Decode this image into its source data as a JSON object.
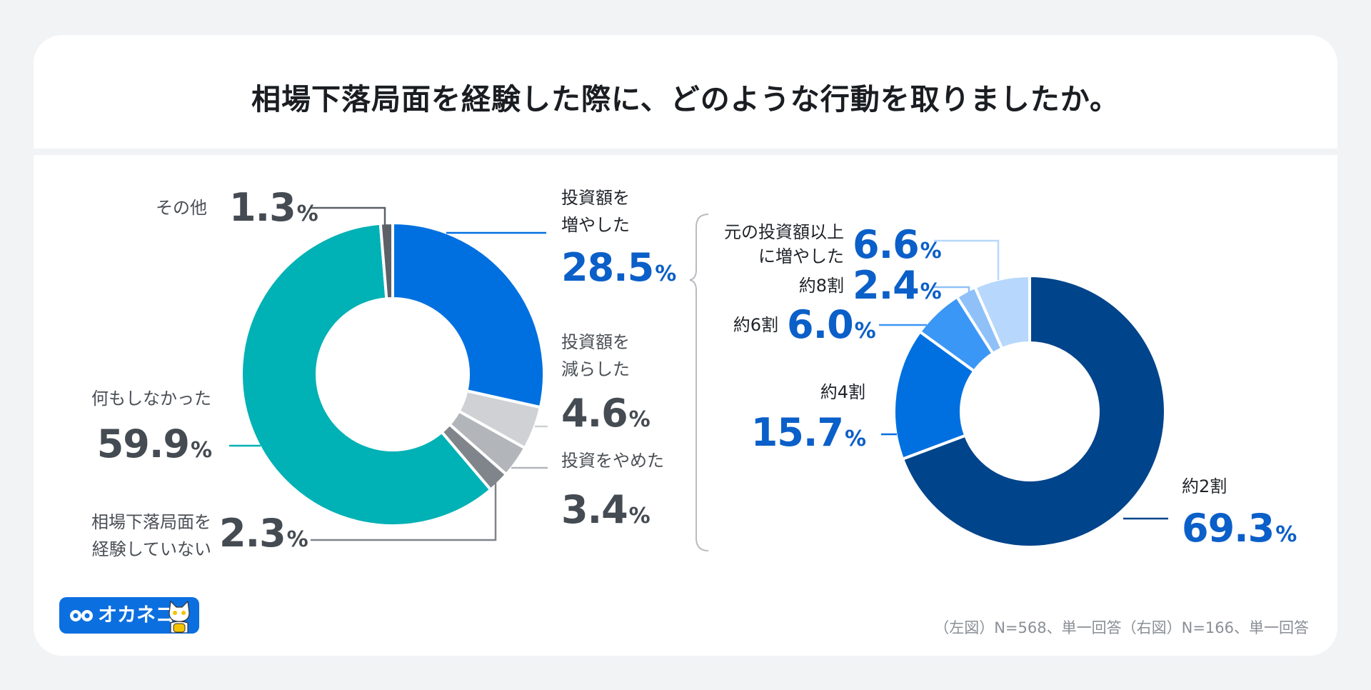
{
  "title": "相場下落局面を経験した際に、どのような行動を取りましたか。",
  "footnote": "（左図）N=568、単一回答（右図）N=166、単一回答",
  "logo": {
    "text": "オカネコ",
    "icon": "infinity-eyes-icon",
    "mascot": "cat-mascot-icon"
  },
  "chart_data": [
    {
      "type": "pie",
      "donut": true,
      "unit": "%",
      "start": "top-clockwise",
      "slices": [
        {
          "label": "投資額を増やした",
          "lines": [
            "投資額を",
            "増やした"
          ],
          "value": 28.5,
          "value_text": "28.5",
          "color": "#0070e0"
        },
        {
          "label": "投資額を減らした",
          "lines": [
            "投資額を",
            "減らした"
          ],
          "value": 4.6,
          "value_text": "4.6",
          "color": "#cfd1d4"
        },
        {
          "label": "投資をやめた",
          "lines": [
            "投資をやめた"
          ],
          "value": 3.4,
          "value_text": "3.4",
          "color": "#b2b6ba"
        },
        {
          "label": "相場下落局面を経験していない",
          "lines": [
            "相場下落局面を",
            "経験していない"
          ],
          "value": 2.3,
          "value_text": "2.3",
          "color": "#80858b"
        },
        {
          "label": "何もしなかった",
          "lines": [
            "何もしなかった"
          ],
          "value": 59.9,
          "value_text": "59.9",
          "color": "#00b1b5"
        },
        {
          "label": "その他",
          "lines": [
            "その他"
          ],
          "value": 1.3,
          "value_text": "1.3",
          "color": "#5c6168"
        }
      ]
    },
    {
      "type": "pie",
      "donut": true,
      "unit": "%",
      "start": "top-clockwise",
      "slices": [
        {
          "label": "約2割",
          "lines": [
            "約2割"
          ],
          "value": 69.3,
          "value_text": "69.3",
          "color": "#00448b"
        },
        {
          "label": "約4割",
          "lines": [
            "約4割"
          ],
          "value": 15.7,
          "value_text": "15.7",
          "color": "#0070e0"
        },
        {
          "label": "約6割",
          "lines": [
            "約6割"
          ],
          "value": 6.0,
          "value_text": "6.0",
          "color": "#3b97f5"
        },
        {
          "label": "約8割",
          "lines": [
            "約8割"
          ],
          "value": 2.4,
          "value_text": "2.4",
          "color": "#8fc1f8"
        },
        {
          "label": "元の投資額以上に増やした",
          "lines": [
            "元の投資額以上",
            "に増やした"
          ],
          "value": 6.6,
          "value_text": "6.6",
          "color": "#b7d8fc"
        }
      ]
    }
  ]
}
